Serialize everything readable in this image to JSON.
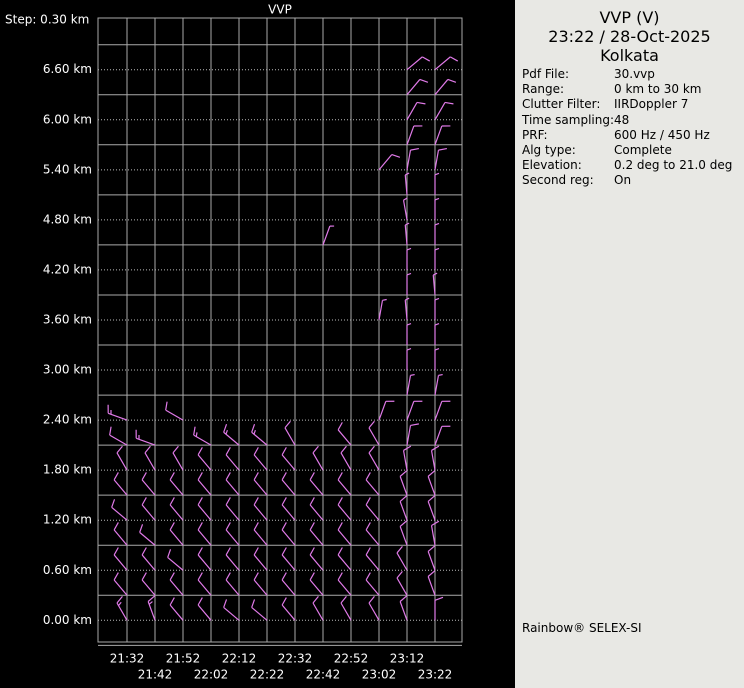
{
  "chart_data": {
    "type": "barbs",
    "title": "VVP",
    "step_label": "Step: 0.30 km",
    "categories": [
      "21:32",
      "21:42",
      "21:52",
      "22:02",
      "22:12",
      "22:22",
      "22:32",
      "22:42",
      "22:52",
      "23:02",
      "23:12",
      "23:22"
    ],
    "levels": [
      0,
      0.3,
      0.6,
      0.9,
      1.2,
      1.5,
      1.8,
      2.1,
      2.4,
      2.7,
      3.0,
      3.3,
      3.6,
      3.9,
      4.2,
      4.5,
      4.8,
      5.1,
      5.4,
      5.7,
      6.0,
      6.3,
      6.6
    ],
    "ylim": [
      -0.26,
      7.22
    ],
    "yticks": [
      {
        "value": 0,
        "label": "0.00 km"
      },
      {
        "value": 0.6,
        "label": "0.60 km"
      },
      {
        "value": 1.2,
        "label": "1.20 km"
      },
      {
        "value": 1.8,
        "label": "1.80 km"
      },
      {
        "value": 2.4,
        "label": "2.40 km"
      },
      {
        "value": 3.0,
        "label": "3.00 km"
      },
      {
        "value": 3.6,
        "label": "3.60 km"
      },
      {
        "value": 4.2,
        "label": "4.20 km"
      },
      {
        "value": 4.8,
        "label": "4.80 km"
      },
      {
        "value": 5.4,
        "label": "5.40 km"
      },
      {
        "value": 6.0,
        "label": "6.00 km"
      },
      {
        "value": 6.6,
        "label": "6.60 km"
      }
    ],
    "color": "#e07ae8",
    "grid": true,
    "direction": [
      [
        330,
        320,
        320,
        320,
        310,
        320,
        330,
        300,
        290,
        null,
        null,
        null,
        null,
        null,
        null,
        null,
        null,
        null,
        null,
        null,
        null,
        null,
        null
      ],
      [
        340,
        320,
        320,
        310,
        320,
        320,
        330,
        290,
        null,
        null,
        null,
        null,
        null,
        null,
        null,
        null,
        null,
        null,
        null,
        null,
        null,
        null,
        null
      ],
      [
        320,
        320,
        310,
        320,
        320,
        320,
        330,
        null,
        300,
        null,
        null,
        null,
        null,
        null,
        null,
        null,
        null,
        null,
        null,
        null,
        null,
        null,
        null
      ],
      [
        320,
        320,
        320,
        320,
        320,
        320,
        320,
        300,
        null,
        null,
        null,
        null,
        null,
        null,
        null,
        null,
        null,
        null,
        null,
        null,
        null,
        null,
        null
      ],
      [
        310,
        320,
        320,
        320,
        320,
        320,
        320,
        310,
        null,
        null,
        null,
        null,
        null,
        null,
        null,
        null,
        null,
        null,
        null,
        null,
        null,
        null,
        null
      ],
      [
        310,
        320,
        320,
        320,
        320,
        320,
        320,
        310,
        null,
        null,
        null,
        null,
        null,
        null,
        null,
        null,
        null,
        null,
        null,
        null,
        null,
        null,
        null
      ],
      [
        320,
        320,
        320,
        320,
        320,
        320,
        320,
        330,
        null,
        null,
        null,
        null,
        null,
        null,
        null,
        null,
        null,
        null,
        null,
        null,
        null,
        null,
        null
      ],
      [
        330,
        320,
        320,
        320,
        320,
        320,
        330,
        null,
        null,
        null,
        null,
        null,
        null,
        null,
        null,
        20,
        null,
        null,
        null,
        null,
        null,
        null,
        null
      ],
      [
        330,
        320,
        320,
        320,
        320,
        320,
        330,
        320,
        null,
        null,
        null,
        null,
        null,
        null,
        null,
        null,
        null,
        null,
        null,
        null,
        null,
        null,
        null
      ],
      [
        330,
        320,
        320,
        320,
        320,
        320,
        330,
        330,
        20,
        null,
        null,
        null,
        10,
        null,
        null,
        null,
        null,
        null,
        40,
        null,
        null,
        null,
        null
      ],
      [
        340,
        330,
        330,
        340,
        340,
        340,
        350,
        10,
        20,
        10,
        0,
        0,
        355,
        0,
        0,
        355,
        350,
        355,
        10,
        20,
        30,
        40,
        50
      ],
      [
        0,
        340,
        340,
        350,
        340,
        340,
        350,
        20,
        20,
        10,
        0,
        0,
        0,
        355,
        0,
        0,
        0,
        0,
        10,
        20,
        30,
        40,
        50
      ]
    ],
    "speed": [
      [
        15,
        10,
        10,
        10,
        10,
        10,
        10,
        10,
        15,
        null,
        null,
        null,
        null,
        null,
        null,
        null,
        null,
        null,
        null,
        null,
        null,
        null,
        null
      ],
      [
        15,
        10,
        10,
        10,
        10,
        10,
        10,
        15,
        null,
        null,
        null,
        null,
        null,
        null,
        null,
        null,
        null,
        null,
        null,
        null,
        null,
        null,
        null
      ],
      [
        10,
        10,
        10,
        10,
        10,
        10,
        10,
        null,
        10,
        null,
        null,
        null,
        null,
        null,
        null,
        null,
        null,
        null,
        null,
        null,
        null,
        null,
        null
      ],
      [
        10,
        10,
        10,
        10,
        10,
        10,
        10,
        15,
        null,
        null,
        null,
        null,
        null,
        null,
        null,
        null,
        null,
        null,
        null,
        null,
        null,
        null,
        null
      ],
      [
        10,
        10,
        10,
        10,
        10,
        10,
        10,
        15,
        null,
        null,
        null,
        null,
        null,
        null,
        null,
        null,
        null,
        null,
        null,
        null,
        null,
        null,
        null
      ],
      [
        10,
        10,
        10,
        10,
        10,
        10,
        10,
        15,
        null,
        null,
        null,
        null,
        null,
        null,
        null,
        null,
        null,
        null,
        null,
        null,
        null,
        null,
        null
      ],
      [
        10,
        10,
        10,
        10,
        10,
        10,
        10,
        10,
        null,
        null,
        null,
        null,
        null,
        null,
        null,
        null,
        null,
        null,
        null,
        null,
        null,
        null,
        null
      ],
      [
        10,
        10,
        10,
        10,
        10,
        10,
        10,
        null,
        null,
        null,
        null,
        null,
        null,
        null,
        null,
        5,
        null,
        null,
        null,
        null,
        null,
        null,
        null
      ],
      [
        10,
        10,
        10,
        10,
        10,
        10,
        10,
        10,
        null,
        null,
        null,
        null,
        null,
        null,
        null,
        null,
        null,
        null,
        null,
        null,
        null,
        null,
        null
      ],
      [
        10,
        10,
        10,
        10,
        10,
        10,
        10,
        10,
        10,
        null,
        null,
        null,
        5,
        null,
        null,
        null,
        null,
        null,
        10,
        null,
        null,
        null,
        null
      ],
      [
        10,
        10,
        10,
        10,
        10,
        10,
        10,
        10,
        10,
        5,
        5,
        5,
        5,
        5,
        5,
        5,
        5,
        5,
        10,
        10,
        10,
        10,
        10
      ],
      [
        10,
        10,
        10,
        10,
        10,
        10,
        10,
        10,
        10,
        5,
        5,
        5,
        5,
        5,
        5,
        5,
        5,
        5,
        10,
        10,
        10,
        10,
        10
      ]
    ]
  },
  "info_panel": {
    "title": "VVP (V)",
    "datetime": "23:22 / 28-Oct-2025",
    "location": "Kolkata",
    "rows": [
      [
        "Pdf File:",
        "30.vvp"
      ],
      [
        "Range:",
        "0 km to 30 km"
      ],
      [
        "Clutter Filter:",
        "IIRDoppler 7"
      ],
      [
        "Time sampling:",
        "48"
      ],
      [
        "PRF:",
        "600 Hz / 450 Hz"
      ],
      [
        "Alg type:",
        "Complete"
      ],
      [
        "Elevation:",
        "0.2 deg to 21.0 deg"
      ],
      [
        "Second reg:",
        "On"
      ]
    ],
    "footer": "Rainbow® SELEX-SI"
  }
}
